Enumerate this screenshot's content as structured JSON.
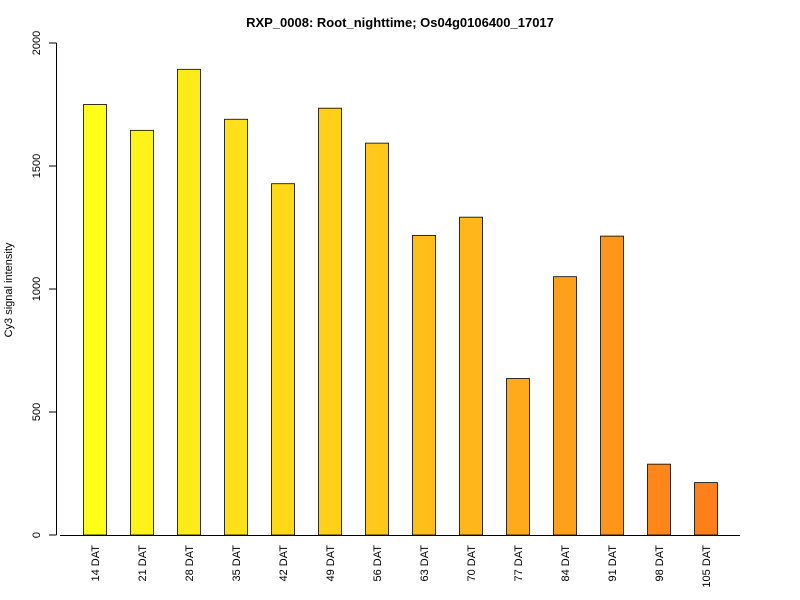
{
  "chart_data": {
    "type": "bar",
    "title": "RXP_0008: Root_nighttime; Os04g0106400_17017",
    "xlabel": "",
    "ylabel": "Cy3 signal intensity",
    "ylim": [
      0,
      2000
    ],
    "yticks": [
      0,
      500,
      1000,
      1500,
      2000
    ],
    "categories": [
      "14 DAT",
      "21 DAT",
      "28 DAT",
      "35 DAT",
      "42 DAT",
      "49 DAT",
      "56 DAT",
      "63 DAT",
      "70 DAT",
      "77 DAT",
      "84 DAT",
      "91 DAT",
      "98 DAT",
      "105 DAT"
    ],
    "values": [
      1750,
      1645,
      1893,
      1690,
      1428,
      1735,
      1593,
      1218,
      1292,
      636,
      1050,
      1215,
      288,
      213
    ],
    "colors": [
      "#FFFF19",
      "#FFF21A",
      "#FFEA1A",
      "#FFE01A",
      "#FFD81A",
      "#FFD01A",
      "#FFC81A",
      "#FFBE1A",
      "#FFB61A",
      "#FFAA1A",
      "#FFA01A",
      "#FF961A",
      "#FF861A",
      "#FF7F1A"
    ],
    "grid": false,
    "legend": "none"
  }
}
